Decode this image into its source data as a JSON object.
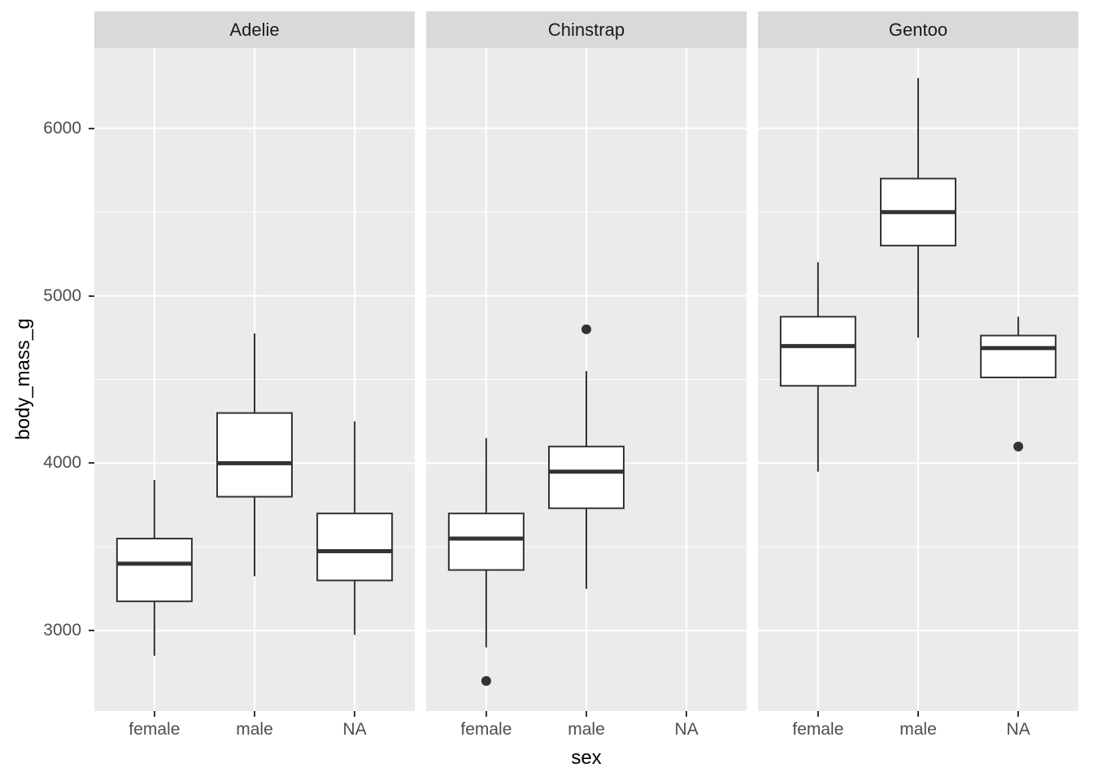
{
  "chart_data": {
    "type": "boxplot",
    "title": "",
    "xlabel": "sex",
    "ylabel": "body_mass_g",
    "facet_variable": "species",
    "x_categories": [
      "female",
      "male",
      "NA"
    ],
    "y_axis": {
      "ticks": [
        3000,
        4000,
        5000,
        6000
      ],
      "minor_ticks": [
        3500,
        4500,
        5500
      ],
      "range": [
        2520,
        6480
      ]
    },
    "legend": "none",
    "grid": "on",
    "facets": [
      {
        "label": "Adelie",
        "boxes": [
          {
            "category": "female",
            "whisker_low": 2850,
            "q1": 3175,
            "median": 3400,
            "q3": 3550,
            "whisker_high": 3900,
            "outliers": []
          },
          {
            "category": "male",
            "whisker_low": 3325,
            "q1": 3800,
            "median": 4000,
            "q3": 4300,
            "whisker_high": 4775,
            "outliers": []
          },
          {
            "category": "NA",
            "whisker_low": 2975,
            "q1": 3300,
            "median": 3475,
            "q3": 3700,
            "whisker_high": 4250,
            "outliers": []
          }
        ]
      },
      {
        "label": "Chinstrap",
        "boxes": [
          {
            "category": "female",
            "whisker_low": 2900,
            "q1": 3362.5,
            "median": 3550,
            "q3": 3700,
            "whisker_high": 4150,
            "outliers": [
              2700
            ]
          },
          {
            "category": "male",
            "whisker_low": 3250,
            "q1": 3731.25,
            "median": 3950,
            "q3": 4100,
            "whisker_high": 4550,
            "outliers": [
              4800
            ]
          }
        ]
      },
      {
        "label": "Gentoo",
        "boxes": [
          {
            "category": "female",
            "whisker_low": 3950,
            "q1": 4462.5,
            "median": 4700,
            "q3": 4875,
            "whisker_high": 5200,
            "outliers": []
          },
          {
            "category": "male",
            "whisker_low": 4750,
            "q1": 5300,
            "median": 5500,
            "q3": 5700,
            "whisker_high": 6300,
            "outliers": []
          },
          {
            "category": "NA",
            "whisker_low": 4650,
            "q1": 4512.5,
            "median": 4687.5,
            "q3": 4762.5,
            "whisker_high": 4875,
            "outliers": [
              4100
            ]
          }
        ]
      }
    ]
  },
  "colors": {
    "background": "#ffffff",
    "panel_bg": "#ebebeb",
    "strip_bg": "#d9d9d9",
    "gridline": "#ffffff",
    "box_stroke": "#333333",
    "box_fill": "#ffffff",
    "outlier": "#333333",
    "axis_text": "#4d4d4d",
    "axis_title": "#000000",
    "tick_mark": "#333333"
  }
}
